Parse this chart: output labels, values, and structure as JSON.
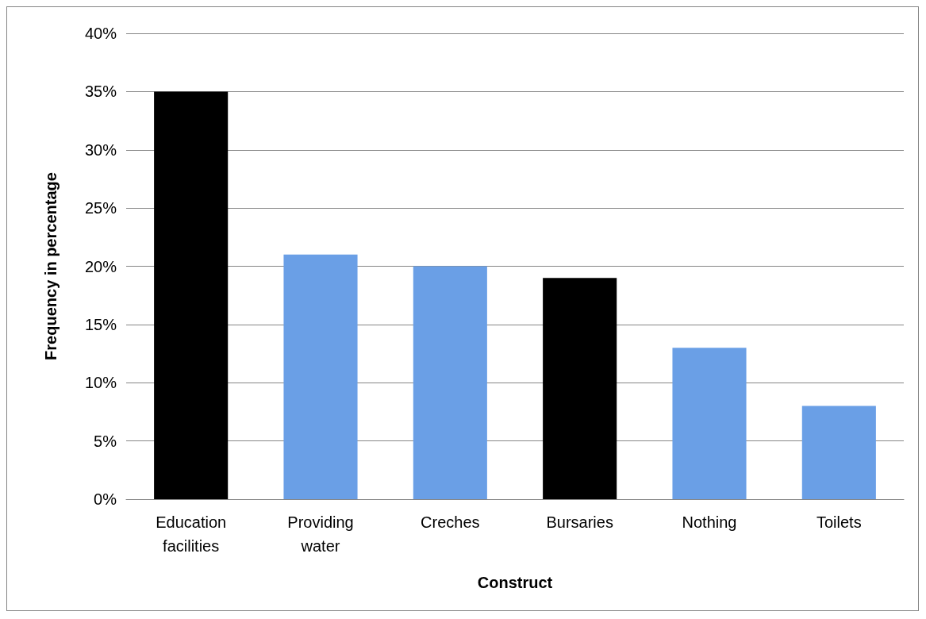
{
  "chart_data": {
    "type": "bar",
    "xlabel": "Construct",
    "ylabel": "Frequency in percentage",
    "categories": [
      "Education facilities",
      "Providing water",
      "Creches",
      "Bursaries",
      "Nothing",
      "Toilets"
    ],
    "values": [
      35,
      21,
      20,
      19,
      13,
      8
    ],
    "colors": [
      "#000000",
      "#6a9fe6",
      "#6a9fe6",
      "#000000",
      "#6a9fe6",
      "#6a9fe6"
    ],
    "ylim": [
      0,
      40
    ],
    "yticks": [
      {
        "value": 0,
        "label": "0%"
      },
      {
        "value": 5,
        "label": "5%"
      },
      {
        "value": 10,
        "label": "10%"
      },
      {
        "value": 15,
        "label": "15%"
      },
      {
        "value": 20,
        "label": "20%"
      },
      {
        "value": 25,
        "label": "25%"
      },
      {
        "value": 30,
        "label": "30%"
      },
      {
        "value": 35,
        "label": "35%"
      },
      {
        "value": 40,
        "label": "40%"
      }
    ],
    "grid": "y"
  }
}
